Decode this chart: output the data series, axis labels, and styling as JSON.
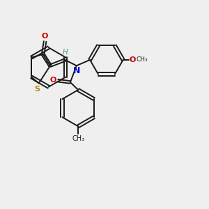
{
  "bg_color": "#efefef",
  "bond_color": "#1a1a1a",
  "S_color": "#b8860b",
  "N_color": "#0000cc",
  "O_color": "#cc0000",
  "H_color": "#4e8b8b",
  "lw": 1.4,
  "doff_ring": 0.055,
  "doff_exo": 0.055,
  "xlim": [
    0,
    10
  ],
  "ylim": [
    0,
    10
  ]
}
